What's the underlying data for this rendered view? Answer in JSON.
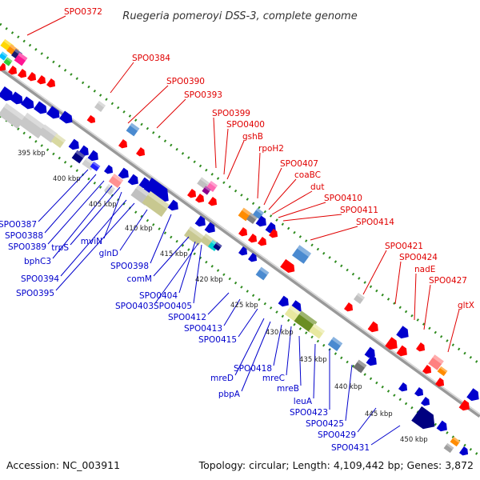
{
  "title": "Ruegeria pomeroyi DSS-3, complete genome",
  "footer": {
    "accession": "Accession: NC_003911",
    "topology": "Topology: circular; Length: 4,109,442 bp; Genes: 3,872"
  },
  "ticks": [
    "395 kbp",
    "400 kbp",
    "405 kbp",
    "410 kbp",
    "415 kbp",
    "420 kbp",
    "425 kbp",
    "430 kbp",
    "435 kbp",
    "440 kbp",
    "445 kbp",
    "450 kbp"
  ],
  "forward_labels": [
    "SPO0372",
    "SPO0384",
    "SPO0390",
    "SPO0393",
    "SPO0399",
    "SPO0400",
    "gshB",
    "rpoH2",
    "SPO0407",
    "coaBC",
    "dut",
    "SPO0410",
    "SPO0411",
    "SPO0414",
    "SPO0421",
    "SPO0424",
    "nadE",
    "SPO0427",
    "gltX"
  ],
  "reverse_labels": [
    "SPO0387",
    "SPO0388",
    "SPO0389",
    "bphC3",
    "trpS",
    "mviN",
    "SPO0394",
    "SPO0395",
    "glnD",
    "SPO0398",
    "comM",
    "SPO0404",
    "SPO0403",
    "SPO0405",
    "SPO0412",
    "SPO0413",
    "SPO0415",
    "mreD",
    "SPO0418",
    "pbpA",
    "mreC",
    "mreB",
    "leuA",
    "SPO0423",
    "SPO0425",
    "SPO0429",
    "SPO0431"
  ],
  "colors": {
    "forward_label": "#e00000",
    "reverse_label": "#0000cc",
    "forward_gene": "#ff0000",
    "reverse_gene": "#0000dd",
    "backbone": "#8a8a8a",
    "gc_dots": "#2e8b1e"
  }
}
